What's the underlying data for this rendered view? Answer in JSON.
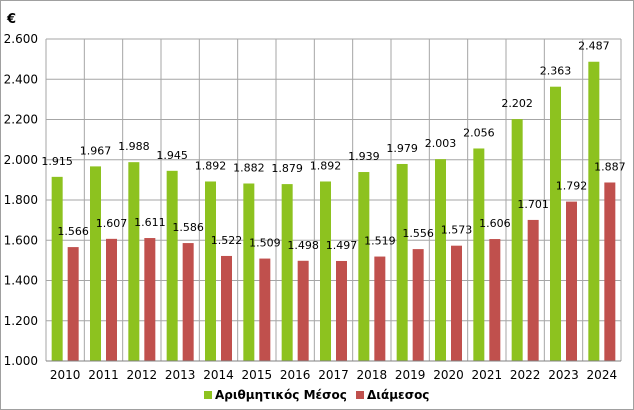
{
  "chart_data": {
    "type": "bar",
    "unit_label": "€",
    "categories": [
      "2010",
      "2011",
      "2012",
      "2013",
      "2014",
      "2015",
      "2016",
      "2017",
      "2018",
      "2019",
      "2020",
      "2021",
      "2022",
      "2023",
      "2024"
    ],
    "series": [
      {
        "name": "Αριθμητικός Μέσος",
        "color": "#8dc21f",
        "values": [
          1915,
          1967,
          1988,
          1945,
          1892,
          1882,
          1879,
          1892,
          1939,
          1979,
          2003,
          2056,
          2202,
          2363,
          2487
        ],
        "labels": [
          "1.915",
          "1.967",
          "1.988",
          "1.945",
          "1.892",
          "1.882",
          "1.879",
          "1.892",
          "1.939",
          "1.979",
          "2.003",
          "2.056",
          "2.202",
          "2.363",
          "2.487"
        ]
      },
      {
        "name": "Διάμεσος",
        "color": "#c0504d",
        "values": [
          1566,
          1607,
          1611,
          1586,
          1522,
          1509,
          1498,
          1497,
          1519,
          1556,
          1573,
          1606,
          1701,
          1792,
          1887
        ],
        "labels": [
          "1.566",
          "1.607",
          "1.611",
          "1.586",
          "1.522",
          "1.509",
          "1.498",
          "1.497",
          "1.519",
          "1.556",
          "1.573",
          "1.606",
          "1.701",
          "1.792",
          "1.887"
        ]
      }
    ],
    "ylim": [
      1000,
      2600
    ],
    "yticks": [
      1000,
      1200,
      1400,
      1600,
      1800,
      2000,
      2200,
      2400,
      2600
    ],
    "ytick_labels": [
      "1.000",
      "1.200",
      "1.400",
      "1.600",
      "1.800",
      "2.000",
      "2.200",
      "2.400",
      "2.600"
    ],
    "grid": true,
    "legend_position": "bottom"
  }
}
